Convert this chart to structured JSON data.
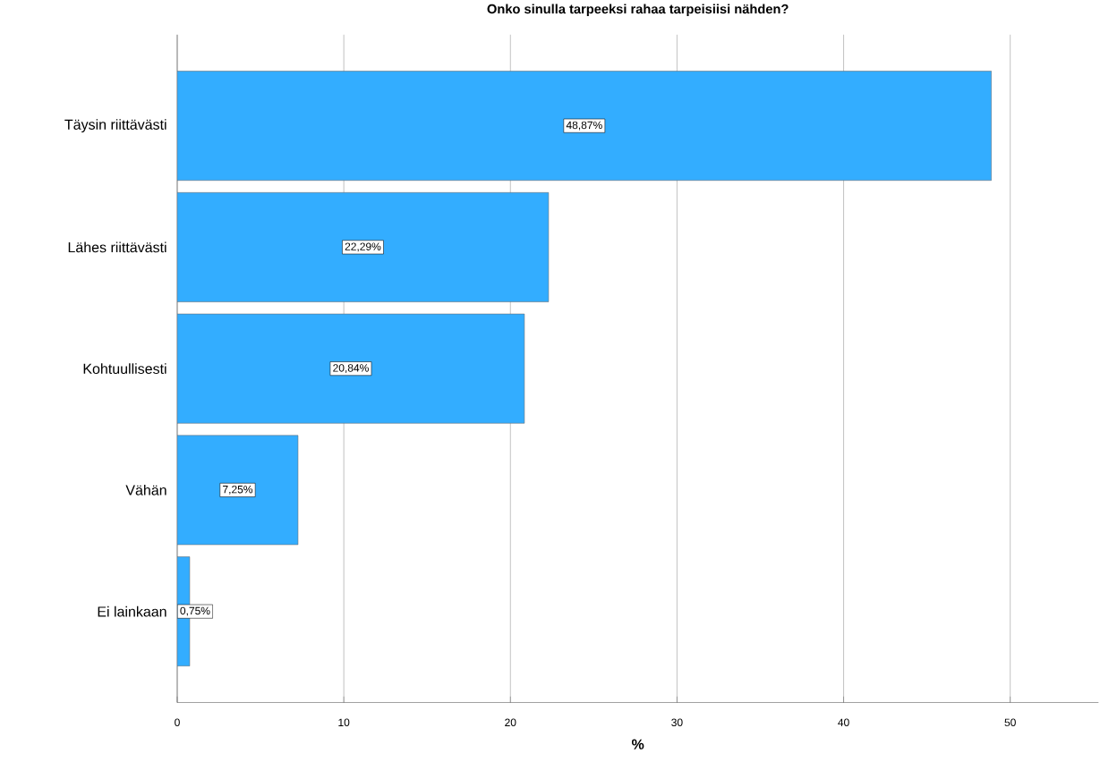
{
  "chart_data": {
    "type": "bar",
    "orientation": "horizontal",
    "title": "Onko sinulla tarpeeksi rahaa tarpeisiisi nähden?",
    "xlabel": "%",
    "categories": [
      "Täysin riittävästi",
      "Lähes riittävästi",
      "Kohtuullisesti",
      "Vähän",
      "Ei lainkaan"
    ],
    "values": [
      48.87,
      22.29,
      20.84,
      7.25,
      0.75
    ],
    "value_labels": [
      "48,87%",
      "22,29%",
      "20,84%",
      "7,25%",
      "0,75%"
    ],
    "color": "#33adff",
    "xlim": [
      0,
      55.3
    ],
    "xticks": [
      0,
      10,
      20,
      30,
      40,
      50
    ],
    "grid": "x"
  }
}
